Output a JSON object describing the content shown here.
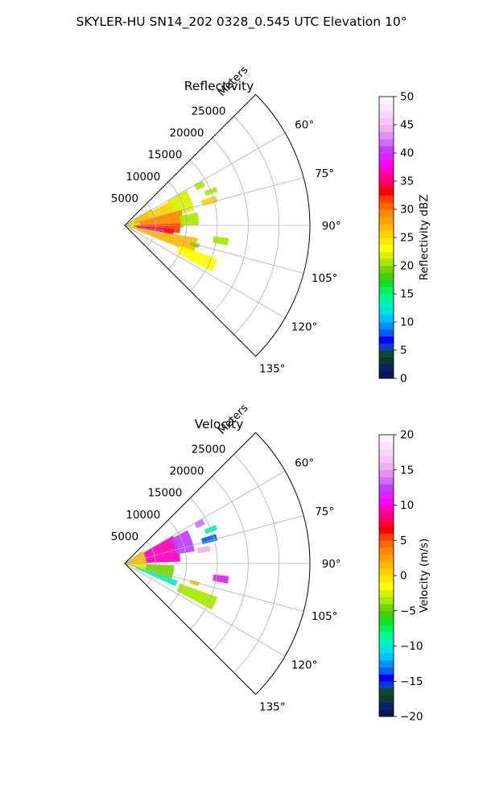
{
  "figure": {
    "title": "SKYLER-HU  SN14_202  0328_0.545 UTC Elevation 10°"
  },
  "chart_data": [
    {
      "type": "heatmap",
      "projection": "polar-sector",
      "title": "Reflectivity",
      "radial_label": "Meters",
      "theta_range_deg": [
        45,
        135
      ],
      "r_range_m": [
        0,
        30000
      ],
      "r_ticks": [
        5000,
        10000,
        15000,
        20000,
        25000
      ],
      "r_tick_labels": [
        "5000",
        "10000",
        "15000",
        "20000",
        "25000"
      ],
      "theta_ticks": [
        60,
        75,
        90,
        105,
        120,
        135
      ],
      "theta_tick_labels": [
        "60°",
        "75°",
        "90°",
        "105°",
        "120°",
        "135°"
      ],
      "grid": true,
      "colorbar": {
        "label": "Reflectivity dBZ",
        "range": [
          0,
          50
        ],
        "ticks": [
          0,
          5,
          10,
          15,
          20,
          25,
          30,
          35,
          40,
          45,
          50
        ],
        "tick_labels": [
          "0",
          "5",
          "10",
          "15",
          "20",
          "25",
          "30",
          "35",
          "40",
          "45",
          "50"
        ],
        "colors": [
          "#0a1656",
          "#06246b",
          "#0b3b2a",
          "#0f4a34",
          "#0c3cc8",
          "#0000ff",
          "#0060ff",
          "#0090ff",
          "#00c0ff",
          "#00e0e0",
          "#00f0c0",
          "#00f890",
          "#00f060",
          "#10e020",
          "#40d000",
          "#70d800",
          "#a8e800",
          "#d8f000",
          "#ffff00",
          "#ffe800",
          "#ffd000",
          "#ffb800",
          "#ffa000",
          "#ff8800",
          "#ff6800",
          "#ff4000",
          "#ff0000",
          "#ff0040",
          "#ff0080",
          "#ff00c0",
          "#ff00ff",
          "#e020ff",
          "#c040ff",
          "#d070ff",
          "#e090f0",
          "#f0b0f0",
          "#f4c4f4",
          "#f8d8f8",
          "#fbe6fb",
          "#fdf2fd"
        ]
      },
      "regions": [
        {
          "theta": [
            55,
            112
          ],
          "r": [
            300,
            2500
          ],
          "value": 24
        },
        {
          "theta": [
            58,
            82
          ],
          "r": [
            1500,
            5000
          ],
          "value": 27
        },
        {
          "theta": [
            62,
            80
          ],
          "r": [
            4000,
            9000
          ],
          "value": 26
        },
        {
          "theta": [
            60,
            78
          ],
          "r": [
            8000,
            11500
          ],
          "value": 22
        },
        {
          "theta": [
            75,
            92
          ],
          "r": [
            2500,
            9500
          ],
          "value": 29
        },
        {
          "theta": [
            80,
            90
          ],
          "r": [
            9000,
            12000
          ],
          "value": 21
        },
        {
          "theta": [
            88,
            98
          ],
          "r": [
            1500,
            9000
          ],
          "value": 32
        },
        {
          "theta": [
            94,
            101
          ],
          "r": [
            2000,
            8000
          ],
          "value": 34
        },
        {
          "theta": [
            96,
            99
          ],
          "r": [
            2500,
            6500
          ],
          "value": 40
        },
        {
          "theta": [
            100,
            112
          ],
          "r": [
            2000,
            12000
          ],
          "value": 27
        },
        {
          "theta": [
            110,
            118
          ],
          "r": [
            9500,
            16000
          ],
          "value": 23
        },
        {
          "theta": [
            72,
            76
          ],
          "r": [
            13000,
            15500
          ],
          "value": 25
        },
        {
          "theta": [
            67,
            70
          ],
          "r": [
            14000,
            16000
          ],
          "value": 21
        },
        {
          "theta": [
            97,
            101
          ],
          "r": [
            14500,
            17000
          ],
          "value": 20
        },
        {
          "theta": [
            60,
            64
          ],
          "r": [
            13000,
            14500
          ],
          "value": 20
        },
        {
          "theta": [
            104,
            107
          ],
          "r": [
            11000,
            12500
          ],
          "value": 19
        }
      ]
    },
    {
      "type": "heatmap",
      "projection": "polar-sector",
      "title": "Velocity",
      "radial_label": "Meters",
      "theta_range_deg": [
        45,
        135
      ],
      "r_range_m": [
        0,
        30000
      ],
      "r_ticks": [
        5000,
        10000,
        15000,
        20000,
        25000
      ],
      "r_tick_labels": [
        "5000",
        "10000",
        "15000",
        "20000",
        "25000"
      ],
      "theta_ticks": [
        60,
        75,
        90,
        105,
        120,
        135
      ],
      "theta_tick_labels": [
        "60°",
        "75°",
        "90°",
        "105°",
        "120°",
        "135°"
      ],
      "grid": true,
      "colorbar": {
        "label": "Velocity (m/s)",
        "range": [
          -20,
          20
        ],
        "ticks": [
          -20,
          -15,
          -10,
          -5,
          0,
          5,
          10,
          15,
          20
        ],
        "tick_labels": [
          "−20",
          "−15",
          "−10",
          "−5",
          "0",
          "5",
          "10",
          "15",
          "20"
        ],
        "colors": [
          "#0a1656",
          "#06246b",
          "#0b3b2a",
          "#0f4a34",
          "#0c3cc8",
          "#0000ff",
          "#0060ff",
          "#0090ff",
          "#00c0ff",
          "#00e0e0",
          "#00f0c0",
          "#00f890",
          "#00f060",
          "#10e020",
          "#40d000",
          "#70d800",
          "#a8e800",
          "#d8f000",
          "#ffff00",
          "#ffe800",
          "#ffd000",
          "#ffb800",
          "#ffa000",
          "#ff8800",
          "#ff6800",
          "#ff4000",
          "#ff0000",
          "#ff0040",
          "#ff0080",
          "#ff00c0",
          "#ff00ff",
          "#e020ff",
          "#c040ff",
          "#d070ff",
          "#e090f0",
          "#f0b0f0",
          "#f4c4f4",
          "#f8d8f8",
          "#fbe6fb",
          "#fdf2fd"
        ]
      },
      "regions": [
        {
          "theta": [
            55,
            90
          ],
          "r": [
            300,
            3500
          ],
          "value": 1
        },
        {
          "theta": [
            90,
            112
          ],
          "r": [
            300,
            3500
          ],
          "value": -3
        },
        {
          "theta": [
            60,
            88
          ],
          "r": [
            3500,
            9000
          ],
          "value": 9
        },
        {
          "theta": [
            62,
            80
          ],
          "r": [
            8500,
            11500
          ],
          "value": 12
        },
        {
          "theta": [
            92,
            108
          ],
          "r": [
            3500,
            8000
          ],
          "value": -5
        },
        {
          "theta": [
            108,
            114
          ],
          "r": [
            2000,
            9000
          ],
          "value": -10
        },
        {
          "theta": [
            110,
            118
          ],
          "r": [
            9500,
            16000
          ],
          "value": -4
        },
        {
          "theta": [
            72,
            76
          ],
          "r": [
            13000,
            15500
          ],
          "value": -14
        },
        {
          "theta": [
            78,
            82
          ],
          "r": [
            12000,
            14000
          ],
          "value": 15
        },
        {
          "theta": [
            67,
            70
          ],
          "r": [
            14000,
            16000
          ],
          "value": -10
        },
        {
          "theta": [
            97,
            101
          ],
          "r": [
            14500,
            17000
          ],
          "value": 11
        },
        {
          "theta": [
            104,
            107
          ],
          "r": [
            11000,
            12500
          ],
          "value": 1
        },
        {
          "theta": [
            60,
            64
          ],
          "r": [
            13000,
            14500
          ],
          "value": 13
        }
      ]
    }
  ]
}
